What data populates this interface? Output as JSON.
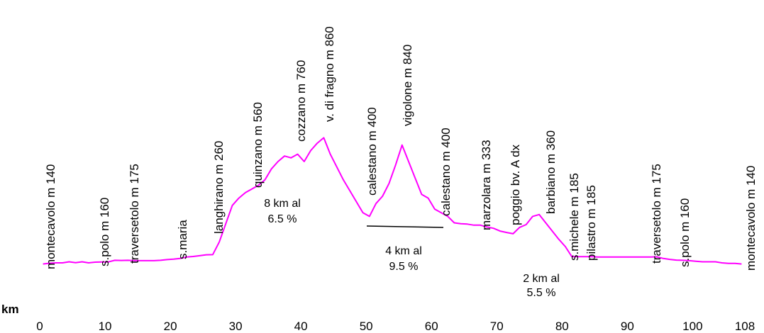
{
  "chart_data": {
    "type": "line",
    "title": "",
    "xlabel": "km",
    "ylabel": "",
    "xlim": [
      0,
      108
    ],
    "x_ticks": [
      "0",
      "10",
      "20",
      "30",
      "40",
      "50",
      "60",
      "70",
      "80",
      "90",
      "100",
      "108"
    ],
    "grid": false,
    "legend": "none",
    "line_color": "#ff00ff",
    "series": [
      {
        "x": [
          0.5,
          1.5,
          2.5,
          3.5,
          4.5,
          5.5,
          6.5,
          7.5,
          8.5,
          9.5,
          10.5,
          11.5,
          12.5,
          13.5,
          14.5,
          15.5,
          16.5,
          17.5,
          18.5,
          19.5,
          20.5,
          21.5,
          22.5,
          23.5,
          24.5,
          25.5,
          26.5,
          27.5,
          28.5,
          29.5,
          30.5,
          31.5,
          32.5,
          33.5,
          34.5,
          35.5,
          36.5,
          37.5,
          38.5,
          39.5,
          40.5,
          41.5,
          42.5,
          43.5,
          44.5,
          45.5,
          46.5,
          47.5,
          48.5,
          49.5,
          50.5,
          51.5,
          52.5,
          53.5,
          54.5,
          55.5,
          56.5,
          57.5,
          58.5,
          59.5,
          60.5,
          61.5,
          62.5,
          63.5,
          64.5,
          65.5,
          66.5,
          67.5,
          68.5,
          69.5,
          70.5,
          71.5,
          72.5,
          73.5,
          74.5,
          75.5,
          76.5,
          77.5,
          78.5,
          79.5,
          80.5,
          81.5,
          82.5,
          83.5,
          84.5,
          85.5,
          86.5,
          87.5,
          88.5,
          89.5,
          90.5,
          91.5,
          92.5,
          93.5,
          94.5,
          95.5,
          96.5,
          97.5,
          98.5,
          99.5,
          100.5,
          101.5,
          102.5,
          103.5,
          104.5,
          105.5,
          106.5,
          107.5
        ],
        "y": [
          140,
          144,
          146,
          146,
          152,
          147,
          152,
          146,
          150,
          151,
          151,
          160,
          159,
          160,
          158,
          158,
          158,
          158,
          160,
          164,
          166,
          170,
          178,
          181,
          185,
          190,
          191,
          260,
          360,
          460,
          500,
          530,
          550,
          570,
          600,
          660,
          700,
          730,
          720,
          740,
          700,
          760,
          800,
          830,
          740,
          670,
          600,
          540,
          480,
          420,
          400,
          470,
          510,
          580,
          680,
          790,
          700,
          610,
          520,
          500,
          440,
          420,
          400,
          365,
          360,
          358,
          352,
          352,
          342,
          335,
          320,
          312,
          305,
          340,
          355,
          400,
          410,
          365,
          320,
          275,
          235,
          180,
          180,
          180,
          180,
          178,
          178,
          178,
          178,
          178,
          178,
          178,
          178,
          178,
          179,
          170,
          165,
          161,
          160,
          158,
          155,
          152,
          152,
          152,
          146,
          143,
          143,
          140
        ]
      }
    ],
    "place_labels": [
      "montecavolo m 140",
      "s.polo  m  160",
      "traversetolo  m  175",
      "s.maria",
      "langhirano  m  260",
      "quinzano m 560",
      "cozzano  m 760",
      "v. di fragno m 860",
      "calestano m 400",
      "vigolone m 840",
      "calestano m 400",
      "marzolara m  333",
      "poggio bv. A  dx",
      "barbiano m  360",
      "s.michele m 185",
      "pilastro m 185",
      "traversetolo  m  175",
      "s.polo  m  160",
      "montecavolo m 140"
    ],
    "annotations": [
      {
        "lines": [
          "8 km al",
          "6.5 %"
        ]
      },
      {
        "lines": [
          "4 km al",
          "9.5 %"
        ]
      },
      {
        "lines": [
          "2 km al",
          "5.5 %"
        ]
      }
    ]
  }
}
